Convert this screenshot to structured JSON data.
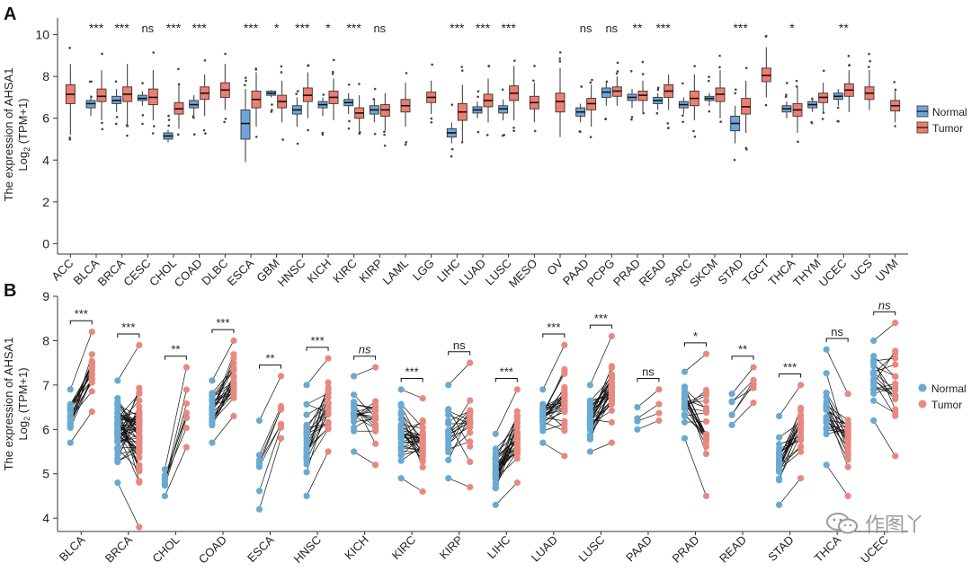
{
  "colors": {
    "normal": "#5b9bd5",
    "tumor": "#e8736a",
    "box_normal": "#6ea6d8",
    "box_tumor": "#ef7d70",
    "pair_normal": "#6aa9d2",
    "pair_tumor": "#e8897f",
    "text": "#222222"
  },
  "watermark": {
    "text": "作图丫",
    "icon": "wechat-bubbles-icon"
  },
  "chart_data": [
    {
      "panel": "A",
      "type": "box",
      "ylabel": "The expression of AHSA1",
      "ylabel2": "Log2 (TPM+1)",
      "yticks": [
        0,
        2,
        4,
        6,
        8,
        10
      ],
      "ylim": [
        -0.5,
        10.8
      ],
      "grid": false,
      "legend": [
        "Normal",
        "Tumor"
      ],
      "legend_position": "right",
      "categories": [
        "ACC",
        "BLCA",
        "BRCA",
        "CESC",
        "CHOL",
        "COAD",
        "DLBC",
        "ESCA",
        "GBM",
        "HNSC",
        "KICH",
        "KIRC",
        "KIRP",
        "LAML",
        "LGG",
        "LIHC",
        "LUAD",
        "LUSC",
        "MESO",
        "OV",
        "PAAD",
        "PCPG",
        "PRAD",
        "READ",
        "SARC",
        "SKCM",
        "STAD",
        "TGCT",
        "THCA",
        "THYM",
        "UCEC",
        "UCS",
        "UVM"
      ],
      "significance": [
        "",
        "***",
        "***",
        "ns",
        "***",
        "***",
        "",
        "***",
        "*",
        "***",
        "*",
        "***",
        "ns",
        "",
        "",
        "***",
        "***",
        "***",
        "",
        "",
        "ns",
        "ns",
        "**",
        "***",
        "",
        "",
        "***",
        "",
        "*",
        "",
        "**",
        "",
        ""
      ],
      "normal": [
        null,
        {
          "q1": 6.5,
          "med": 6.7,
          "q3": 6.85,
          "lo": 6.1,
          "hi": 7.0
        },
        {
          "q1": 6.7,
          "med": 6.85,
          "q3": 7.05,
          "lo": 6.3,
          "hi": 7.4
        },
        {
          "q1": 6.85,
          "med": 6.95,
          "q3": 7.1,
          "lo": 6.6,
          "hi": 7.3
        },
        {
          "q1": 5.0,
          "med": 5.15,
          "q3": 5.3,
          "lo": 4.85,
          "hi": 5.45
        },
        {
          "q1": 6.5,
          "med": 6.65,
          "q3": 6.85,
          "lo": 6.1,
          "hi": 7.1
        },
        null,
        {
          "q1": 5.0,
          "med": 5.75,
          "q3": 6.4,
          "lo": 3.9,
          "hi": 7.4
        },
        {
          "q1": 7.1,
          "med": 7.2,
          "q3": 7.3,
          "lo": 7.0,
          "hi": 7.35
        },
        {
          "q1": 6.2,
          "med": 6.4,
          "q3": 6.6,
          "lo": 5.6,
          "hi": 7.0
        },
        {
          "q1": 6.5,
          "med": 6.65,
          "q3": 6.8,
          "lo": 6.1,
          "hi": 7.0
        },
        {
          "q1": 6.6,
          "med": 6.75,
          "q3": 6.9,
          "lo": 6.2,
          "hi": 7.2
        },
        {
          "q1": 6.2,
          "med": 6.4,
          "q3": 6.6,
          "lo": 5.8,
          "hi": 6.9
        },
        null,
        null,
        {
          "q1": 5.1,
          "med": 5.3,
          "q3": 5.5,
          "lo": 4.8,
          "hi": 5.8
        },
        {
          "q1": 6.25,
          "med": 6.4,
          "q3": 6.55,
          "lo": 6.0,
          "hi": 6.8
        },
        {
          "q1": 6.25,
          "med": 6.45,
          "q3": 6.6,
          "lo": 5.9,
          "hi": 6.9
        },
        null,
        null,
        {
          "q1": 6.1,
          "med": 6.3,
          "q3": 6.5,
          "lo": 5.8,
          "hi": 6.7
        },
        {
          "q1": 7.0,
          "med": 7.25,
          "q3": 7.45,
          "lo": 6.6,
          "hi": 7.7
        },
        {
          "q1": 6.85,
          "med": 7.0,
          "q3": 7.15,
          "lo": 6.5,
          "hi": 7.4
        },
        {
          "q1": 6.7,
          "med": 6.85,
          "q3": 7.0,
          "lo": 6.4,
          "hi": 7.2
        },
        {
          "q1": 6.5,
          "med": 6.65,
          "q3": 6.8,
          "lo": 6.2,
          "hi": 7.0
        },
        {
          "q1": 6.85,
          "med": 6.95,
          "q3": 7.05,
          "lo": 6.6,
          "hi": 7.2
        },
        {
          "q1": 5.4,
          "med": 5.75,
          "q3": 6.1,
          "lo": 4.8,
          "hi": 6.6
        },
        null,
        {
          "q1": 6.3,
          "med": 6.45,
          "q3": 6.6,
          "lo": 6.0,
          "hi": 6.8
        },
        {
          "q1": 6.5,
          "med": 6.65,
          "q3": 6.8,
          "lo": 6.3,
          "hi": 6.9
        },
        {
          "q1": 6.9,
          "med": 7.05,
          "q3": 7.2,
          "lo": 6.6,
          "hi": 7.4
        },
        null,
        null
      ],
      "tumor": [
        {
          "q1": 6.7,
          "med": 7.15,
          "q3": 7.6,
          "lo": 5.2,
          "hi": 8.6
        },
        {
          "q1": 6.8,
          "med": 7.05,
          "q3": 7.4,
          "lo": 5.9,
          "hi": 8.3
        },
        {
          "q1": 6.8,
          "med": 7.15,
          "q3": 7.5,
          "lo": 5.7,
          "hi": 8.6
        },
        {
          "q1": 6.65,
          "med": 7.0,
          "q3": 7.4,
          "lo": 5.9,
          "hi": 8.3
        },
        {
          "q1": 6.2,
          "med": 6.45,
          "q3": 6.75,
          "lo": 5.5,
          "hi": 7.6
        },
        {
          "q1": 6.9,
          "med": 7.2,
          "q3": 7.5,
          "lo": 6.1,
          "hi": 8.1
        },
        {
          "q1": 7.0,
          "med": 7.35,
          "q3": 7.7,
          "lo": 6.4,
          "hi": 8.6
        },
        {
          "q1": 6.5,
          "med": 6.9,
          "q3": 7.3,
          "lo": 5.6,
          "hi": 8.2
        },
        {
          "q1": 6.5,
          "med": 6.8,
          "q3": 7.1,
          "lo": 5.8,
          "hi": 7.8
        },
        {
          "q1": 6.8,
          "med": 7.1,
          "q3": 7.45,
          "lo": 6.0,
          "hi": 8.2
        },
        {
          "q1": 6.7,
          "med": 7.0,
          "q3": 7.3,
          "lo": 5.9,
          "hi": 7.9
        },
        {
          "q1": 6.0,
          "med": 6.25,
          "q3": 6.5,
          "lo": 5.4,
          "hi": 7.1
        },
        {
          "q1": 6.1,
          "med": 6.4,
          "q3": 6.65,
          "lo": 5.4,
          "hi": 7.2
        },
        {
          "q1": 6.3,
          "med": 6.6,
          "q3": 6.9,
          "lo": 5.6,
          "hi": 7.7
        },
        {
          "q1": 6.75,
          "med": 7.0,
          "q3": 7.25,
          "lo": 6.2,
          "hi": 7.8
        },
        {
          "q1": 5.9,
          "med": 6.3,
          "q3": 6.7,
          "lo": 4.9,
          "hi": 7.6
        },
        {
          "q1": 6.55,
          "med": 6.85,
          "q3": 7.15,
          "lo": 5.8,
          "hi": 7.9
        },
        {
          "q1": 6.85,
          "med": 7.2,
          "q3": 7.55,
          "lo": 5.9,
          "hi": 8.5
        },
        {
          "q1": 6.45,
          "med": 6.75,
          "q3": 7.05,
          "lo": 5.8,
          "hi": 7.7
        },
        {
          "q1": 6.3,
          "med": 6.8,
          "q3": 7.2,
          "lo": 5.1,
          "hi": 8.4
        },
        {
          "q1": 6.4,
          "med": 6.7,
          "q3": 6.95,
          "lo": 5.6,
          "hi": 7.6
        },
        {
          "q1": 7.05,
          "med": 7.3,
          "q3": 7.5,
          "lo": 6.6,
          "hi": 8.0
        },
        {
          "q1": 6.85,
          "med": 7.1,
          "q3": 7.3,
          "lo": 6.3,
          "hi": 7.8
        },
        {
          "q1": 7.0,
          "med": 7.3,
          "q3": 7.6,
          "lo": 6.4,
          "hi": 8.1
        },
        {
          "q1": 6.6,
          "med": 6.95,
          "q3": 7.3,
          "lo": 5.9,
          "hi": 8.1
        },
        {
          "q1": 6.8,
          "med": 7.15,
          "q3": 7.45,
          "lo": 6.0,
          "hi": 8.3
        },
        {
          "q1": 6.2,
          "med": 6.55,
          "q3": 6.95,
          "lo": 5.3,
          "hi": 7.8
        },
        {
          "q1": 7.75,
          "med": 8.05,
          "q3": 8.4,
          "lo": 7.0,
          "hi": 9.4
        },
        {
          "q1": 6.1,
          "med": 6.4,
          "q3": 6.7,
          "lo": 5.3,
          "hi": 7.5
        },
        {
          "q1": 6.75,
          "med": 7.0,
          "q3": 7.2,
          "lo": 6.3,
          "hi": 7.7
        },
        {
          "q1": 7.05,
          "med": 7.35,
          "q3": 7.65,
          "lo": 6.3,
          "hi": 8.3
        },
        {
          "q1": 6.9,
          "med": 7.2,
          "q3": 7.5,
          "lo": 6.4,
          "hi": 8.3
        },
        {
          "q1": 6.35,
          "med": 6.6,
          "q3": 6.85,
          "lo": 5.8,
          "hi": 7.3
        }
      ]
    },
    {
      "panel": "B",
      "type": "paired-scatter",
      "ylabel": "The expression of AHSA1",
      "ylabel2": "Log2 (TPM+1)",
      "yticks": [
        4,
        5,
        6,
        7,
        8,
        9
      ],
      "ylim": [
        3.7,
        9.0
      ],
      "grid": false,
      "legend": [
        "Normal",
        "Tumor"
      ],
      "legend_position": "right",
      "categories": [
        "BLCA",
        "BRCA",
        "CHOL",
        "COAD",
        "ESCA",
        "HNSC",
        "KICH",
        "KIRC",
        "KIRP",
        "LIHC",
        "LUAD",
        "LUSC",
        "PAAD",
        "PRAD",
        "READ",
        "STAD",
        "THCA",
        "UCEC"
      ],
      "significance": [
        "***",
        "***",
        "**",
        "***",
        "**",
        "***",
        "ns",
        "***",
        "ns",
        "***",
        "***",
        "***",
        "ns",
        "*",
        "**",
        "***",
        "ns",
        "ns"
      ],
      "normal_range": [
        [
          5.7,
          6.9
        ],
        [
          4.8,
          7.1
        ],
        [
          4.5,
          5.1
        ],
        [
          5.7,
          7.1
        ],
        [
          4.2,
          6.2
        ],
        [
          4.5,
          7.0
        ],
        [
          5.5,
          7.2
        ],
        [
          4.9,
          6.9
        ],
        [
          4.9,
          7.0
        ],
        [
          4.3,
          5.9
        ],
        [
          5.7,
          6.9
        ],
        [
          5.5,
          7.0
        ],
        [
          6.0,
          6.5
        ],
        [
          5.8,
          7.3
        ],
        [
          6.1,
          6.8
        ],
        [
          4.3,
          6.3
        ],
        [
          5.2,
          7.8
        ],
        [
          6.2,
          8.0
        ]
      ],
      "tumor_range": [
        [
          6.4,
          8.2
        ],
        [
          3.8,
          7.9
        ],
        [
          5.6,
          7.4
        ],
        [
          6.3,
          8.0
        ],
        [
          5.8,
          7.2
        ],
        [
          5.5,
          7.6
        ],
        [
          5.2,
          7.4
        ],
        [
          4.6,
          6.7
        ],
        [
          4.7,
          7.5
        ],
        [
          4.8,
          6.9
        ],
        [
          5.4,
          7.9
        ],
        [
          5.7,
          8.1
        ],
        [
          6.2,
          6.9
        ],
        [
          4.5,
          7.7
        ],
        [
          6.6,
          7.4
        ],
        [
          4.9,
          7.0
        ],
        [
          4.5,
          6.8
        ],
        [
          5.4,
          8.4
        ]
      ],
      "pairs": [
        20,
        60,
        8,
        28,
        8,
        24,
        20,
        36,
        20,
        34,
        30,
        34,
        4,
        24,
        6,
        24,
        26,
        20
      ]
    }
  ]
}
